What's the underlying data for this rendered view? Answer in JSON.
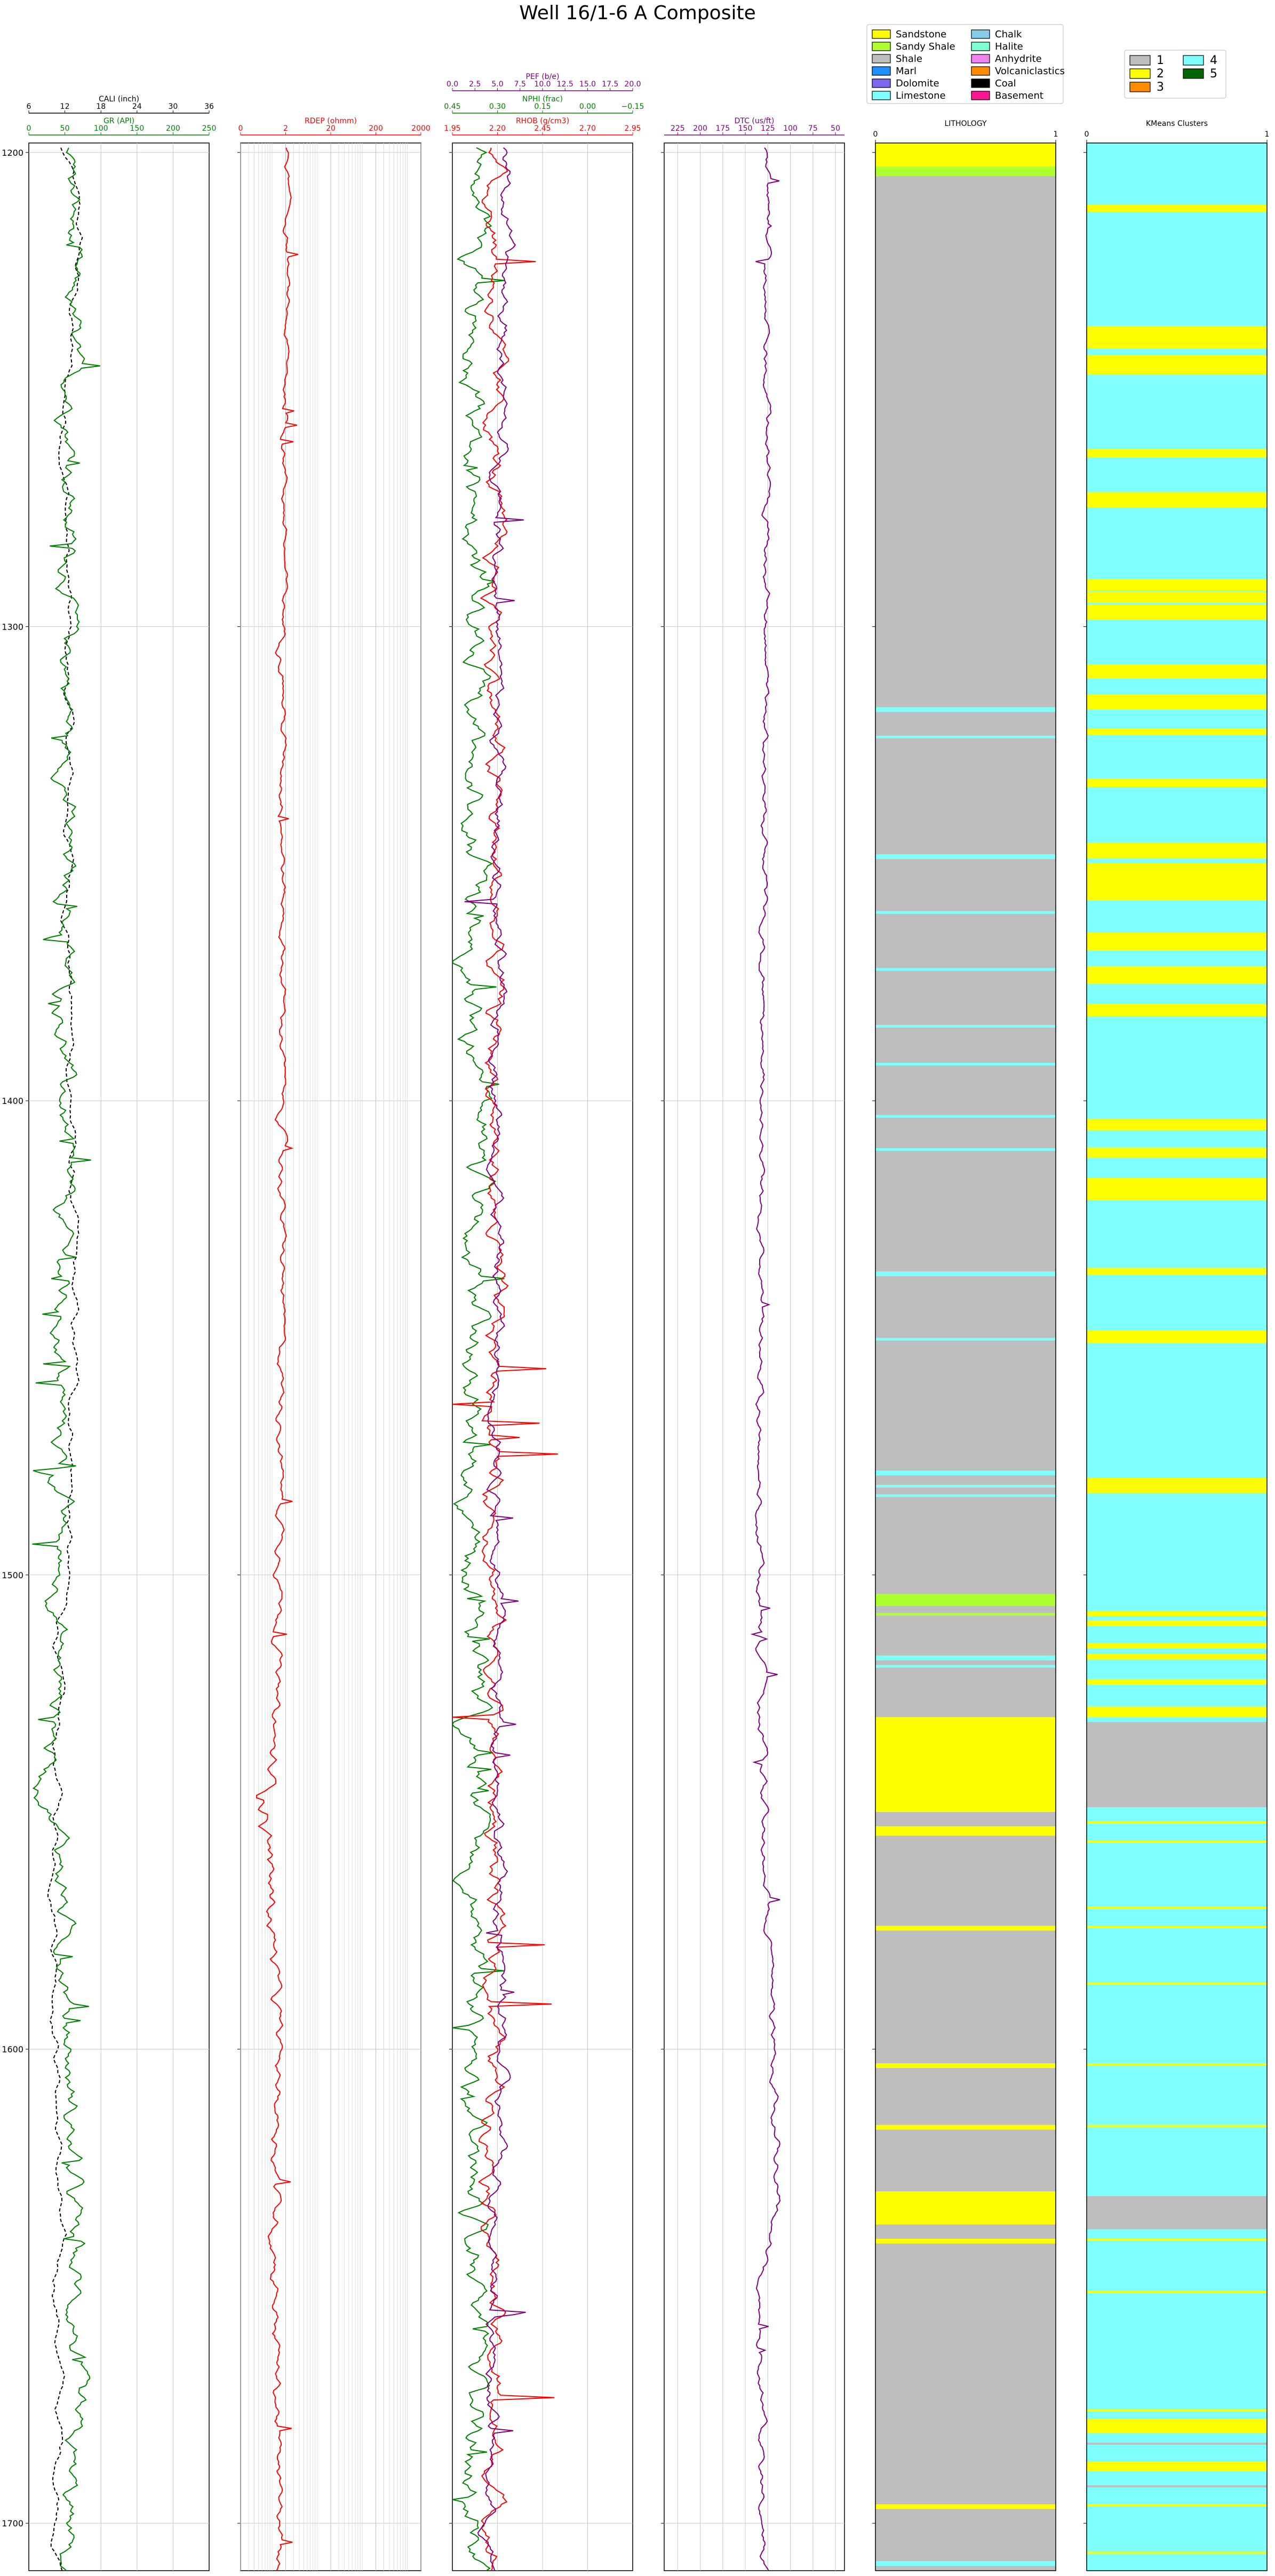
{
  "chart_data": {
    "type": "line",
    "title": "Well 16/1-6 A Composite",
    "depth_axis": {
      "ylim": [
        1710,
        1198
      ],
      "ticks": [
        1200,
        1300,
        1400,
        1500,
        1600,
        1700
      ],
      "inverted": true,
      "grid": true
    },
    "tracks": [
      {
        "id": "gr-cali",
        "curves": [
          {
            "name": "CALI (inch)",
            "color": "#000000",
            "dashed": true,
            "xlim": [
              6,
              36
            ],
            "ticks": [
              6,
              12,
              18,
              24,
              30,
              36
            ],
            "tick_labels": [
              "6",
              "12",
              "18",
              "24",
              "30",
              "36"
            ],
            "base": 10.5,
            "amp": 0.9,
            "dev": [
              [
                1200,
                12.5
              ],
              [
                1215,
                14.5
              ],
              [
                1250,
                12
              ],
              [
                1470,
                13.5
              ],
              [
                1500,
                12
              ],
              [
                1520,
                10.5
              ],
              [
                1700,
                11
              ]
            ]
          },
          {
            "name": "GR (API)",
            "color": "#008000",
            "xlim": [
              0,
              250
            ],
            "ticks": [
              0,
              50,
              100,
              150,
              200,
              250
            ],
            "tick_labels": [
              "0",
              "50",
              "100",
              "150",
              "200",
              "250"
            ],
            "base": 60,
            "amp": 12,
            "dev": [
              [
                1200,
                60
              ],
              [
                1250,
                58
              ],
              [
                1530,
                40
              ],
              [
                1545,
                20
              ],
              [
                1555,
                45
              ],
              [
                1625,
                60
              ],
              [
                1660,
                65
              ],
              [
                1710,
                50
              ]
            ]
          }
        ]
      },
      {
        "id": "rdep",
        "curves": [
          {
            "name": "RDEP (ohmm)",
            "color": "#ff0000",
            "log": true,
            "xlim": [
              0.2,
              2000
            ],
            "ticks": [
              0.2,
              2,
              20,
              200,
              2000
            ],
            "tick_labels": [
              "0",
              "2",
              "20",
              "200",
              "2000"
            ],
            "base": 2.0,
            "amp": 0.3,
            "dev": [
              [
                1200,
                2.2
              ],
              [
                1300,
                1.8
              ],
              [
                1500,
                1.6
              ],
              [
                1535,
                1.0
              ],
              [
                1555,
                0.8
              ],
              [
                1600,
                1.4
              ],
              [
                1640,
                1.2
              ],
              [
                1700,
                1.4
              ]
            ]
          }
        ]
      },
      {
        "id": "rhob-nphi-pef",
        "curves": [
          {
            "name": "PEF (b/e)",
            "color": "#800080",
            "xlim": [
              0,
              20
            ],
            "ticks": [
              0,
              2.5,
              5,
              7.5,
              10,
              12.5,
              15,
              17.5,
              20
            ],
            "tick_labels": [
              "0.0",
              "2.5",
              "5.0",
              "7.5",
              "10.0",
              "12.5",
              "15.0",
              "17.5",
              "20.0"
            ]
          },
          {
            "name": "NPHI (frac)",
            "color": "#008000",
            "xlim": [
              0.45,
              -0.15
            ],
            "ticks": [
              0.45,
              0.3,
              0.15,
              0.0,
              -0.15
            ],
            "tick_labels": [
              "0.45",
              "0.30",
              "0.15",
              "0.00",
              "−0.15"
            ],
            "base": 0.38,
            "amp": 0.04
          },
          {
            "name": "RHOB (g/cm3)",
            "color": "#ff0000",
            "xlim": [
              1.95,
              2.95
            ],
            "ticks": [
              1.95,
              2.2,
              2.45,
              2.7,
              2.95
            ],
            "tick_labels": [
              "1.95",
              "2.20",
              "2.45",
              "2.70",
              "2.95"
            ],
            "base": 2.18,
            "amp": 0.05
          }
        ]
      },
      {
        "id": "dtc",
        "curves": [
          {
            "name": "DTC (us/ft)",
            "color": "#800080",
            "xlim": [
              240,
              40
            ],
            "ticks": [
              225,
              200,
              175,
              150,
              125,
              100,
              75,
              50
            ],
            "tick_labels": [
              "225",
              "200",
              "175",
              "150",
              "125",
              "100",
              "75",
              "50"
            ],
            "base": 130,
            "amp": 4,
            "dev": [
              [
                1200,
                125
              ],
              [
                1300,
                128
              ],
              [
                1500,
                135
              ],
              [
                1560,
                128
              ],
              [
                1630,
                112
              ],
              [
                1650,
                135
              ],
              [
                1700,
                130
              ]
            ]
          }
        ]
      },
      {
        "id": "lithology",
        "title": "LITHOLOGY",
        "xlim": [
          0,
          1
        ],
        "tick_labels": [
          "0",
          "1"
        ],
        "background": "Shale",
        "intervals": [
          {
            "top": 1198,
            "base": 1203,
            "lith": "Sandstone"
          },
          {
            "top": 1203,
            "base": 1205,
            "lith": "Sandy Shale"
          },
          {
            "top": 1317,
            "base": 1318,
            "lith": "Limestone"
          },
          {
            "top": 1348,
            "base": 1349,
            "lith": "Limestone"
          },
          {
            "top": 1436,
            "base": 1437,
            "lith": "Limestone"
          },
          {
            "top": 1478,
            "base": 1479,
            "lith": "Limestone"
          },
          {
            "top": 1504,
            "base": 1506,
            "lith": "Sandy Shale"
          },
          {
            "top": 1517,
            "base": 1518,
            "lith": "Limestone"
          },
          {
            "top": 1530,
            "base": 1550,
            "lith": "Sandstone"
          },
          {
            "top": 1553,
            "base": 1555,
            "lith": "Sandstone"
          },
          {
            "top": 1574,
            "base": 1575,
            "lith": "Sandstone"
          },
          {
            "top": 1603,
            "base": 1604,
            "lith": "Sandstone"
          },
          {
            "top": 1616,
            "base": 1617,
            "lith": "Sandstone"
          },
          {
            "top": 1630,
            "base": 1637,
            "lith": "Sandstone"
          },
          {
            "top": 1640,
            "base": 1641,
            "lith": "Sandstone"
          },
          {
            "top": 1696,
            "base": 1697,
            "lith": "Sandstone"
          },
          {
            "top": 1708,
            "base": 1709,
            "lith": "Limestone"
          }
        ]
      },
      {
        "id": "kmeans",
        "title": "KMeans Clusters",
        "xlim": [
          0,
          1
        ],
        "tick_labels": [
          "0",
          "1"
        ],
        "background": "4",
        "intervals": [
          {
            "top": 1531,
            "base": 1549,
            "cluster": "1"
          },
          {
            "top": 1528,
            "base": 1530,
            "cluster": "2"
          },
          {
            "top": 1631,
            "base": 1638,
            "cluster": "1"
          },
          {
            "top": 1678,
            "base": 1681,
            "cluster": "2"
          },
          {
            "top": 1687,
            "base": 1689,
            "cluster": "2"
          }
        ]
      }
    ],
    "lithology_legend": [
      {
        "label": "Sandstone",
        "color": "#ffff00"
      },
      {
        "label": "Sandy Shale",
        "color": "#adff2f"
      },
      {
        "label": "Shale",
        "color": "#bebebe"
      },
      {
        "label": "Marl",
        "color": "#1e90ff"
      },
      {
        "label": "Dolomite",
        "color": "#7b68ee"
      },
      {
        "label": "Limestone",
        "color": "#80ffff"
      },
      {
        "label": "Chalk",
        "color": "#87ceeb"
      },
      {
        "label": "Halite",
        "color": "#7fffd4"
      },
      {
        "label": "Anhydrite",
        "color": "#ee82ee"
      },
      {
        "label": "Volcaniclastics",
        "color": "#ff8c00"
      },
      {
        "label": "Coal",
        "color": "#000000"
      },
      {
        "label": "Basement",
        "color": "#ff1493"
      }
    ],
    "cluster_legend": [
      {
        "label": "1",
        "color": "#bebebe"
      },
      {
        "label": "2",
        "color": "#ffff00"
      },
      {
        "label": "3",
        "color": "#ff8c00"
      },
      {
        "label": "4",
        "color": "#80ffff"
      },
      {
        "label": "5",
        "color": "#006400"
      }
    ]
  }
}
